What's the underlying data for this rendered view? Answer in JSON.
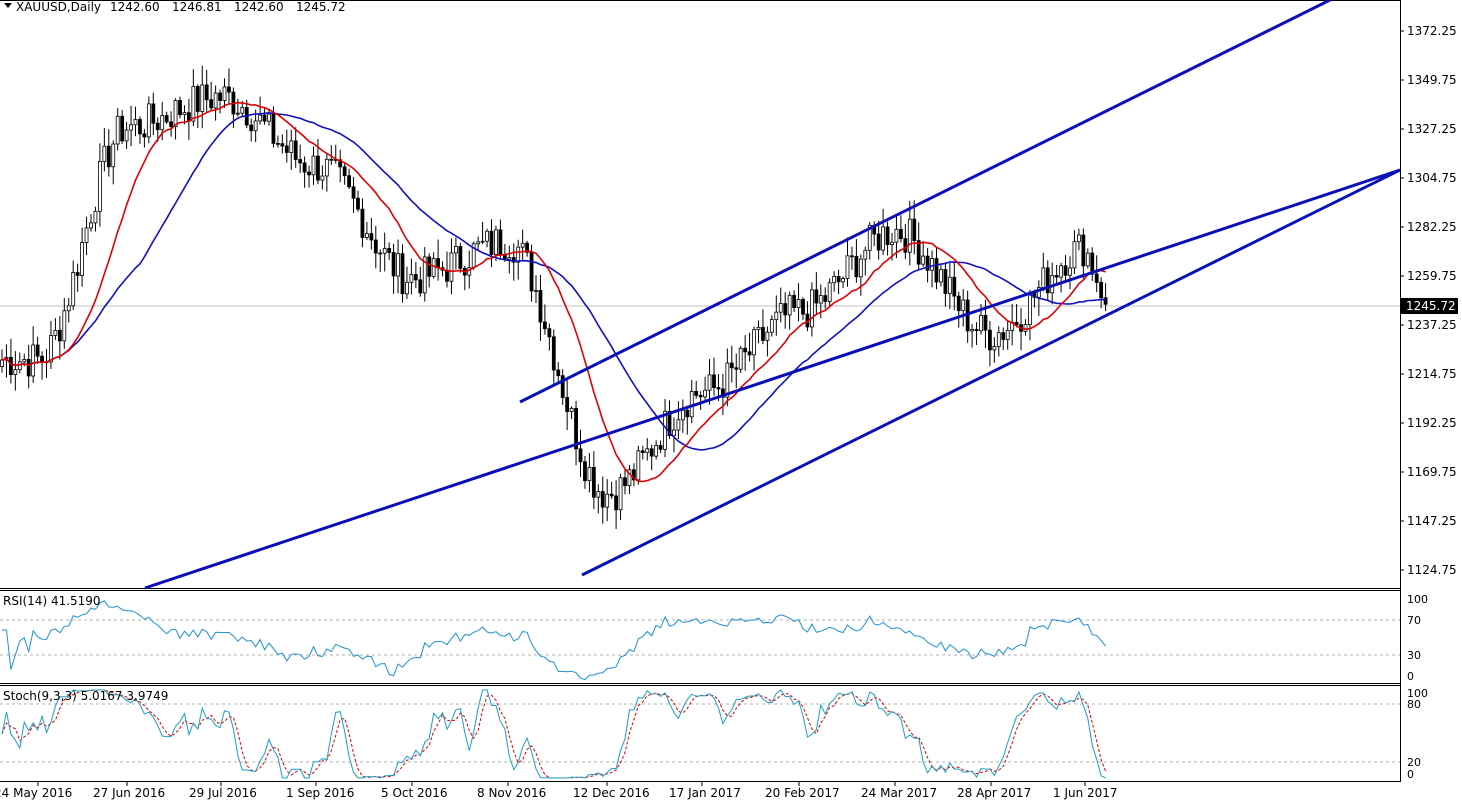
{
  "header": {
    "symbol": "XAUUSD,Daily",
    "open": "1242.60",
    "high": "1246.81",
    "low": "1242.60",
    "close": "1245.72"
  },
  "price_axis": {
    "ticks": [
      "1372.25",
      "1349.75",
      "1327.25",
      "1304.75",
      "1282.25",
      "1259.75",
      "1237.25",
      "1214.75",
      "1192.25",
      "1169.75",
      "1147.25",
      "1124.75"
    ],
    "current_price_label": "1245.72"
  },
  "time_axis": {
    "labels": [
      "24 May 2016",
      "27 Jun 2016",
      "29 Jul 2016",
      "1 Sep 2016",
      "5 Oct 2016",
      "8 Nov 2016",
      "12 Dec 2016",
      "17 Jan 2017",
      "20 Feb 2017",
      "24 Mar 2017",
      "28 Apr 2017",
      "1 Jun 2017"
    ]
  },
  "rsi": {
    "label": "RSI(14) 41.5190",
    "levels": [
      "100",
      "70",
      "30",
      "0"
    ]
  },
  "stoch": {
    "label": "Stoch(9,3,3) 5.0167 3.9749",
    "levels": [
      "100",
      "80",
      "20",
      "0"
    ]
  },
  "colors": {
    "candle": "#000000",
    "ma_fast": "#e00000",
    "ma_slow": "#1010c0",
    "channel": "#0a10b8",
    "rsi_line": "#1e90d0",
    "stoch_main": "#1aa0c8",
    "stoch_signal": "#e00000",
    "grid": "#b0b0b0"
  },
  "chart_data": {
    "type": "line",
    "title": "XAUUSD,Daily",
    "series": [
      {
        "name": "XAUUSD close",
        "x": [
          "24 May 2016",
          "27 Jun 2016",
          "29 Jul 2016",
          "1 Sep 2016",
          "5 Oct 2016",
          "8 Nov 2016",
          "12 Dec 2016",
          "17 Jan 2017",
          "20 Feb 2017",
          "24 Mar 2017",
          "28 Apr 2017",
          "1 Jun 2017"
        ],
        "values": [
          1220,
          1328,
          1342,
          1310,
          1258,
          1275,
          1158,
          1205,
          1242,
          1280,
          1232,
          1272
        ]
      }
    ],
    "last_close": 1245.72,
    "ylim": [
      1115,
      1385
    ],
    "indicators": [
      "RSI(14) 41.5190",
      "Stoch(9,3,3) 5.0167 3.9749"
    ]
  }
}
